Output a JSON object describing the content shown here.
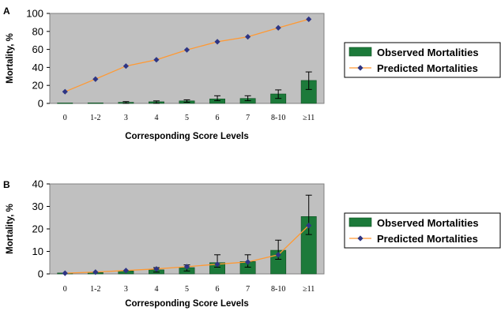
{
  "colors": {
    "plot_background": "#c0c0c0",
    "bar": "#1c7a3a",
    "line": "#ff9933",
    "marker": "#2e3584"
  },
  "chart_data": [
    {
      "panel": "A",
      "type": "bar",
      "categories": [
        "0",
        "1-2",
        "3",
        "4",
        "5",
        "6",
        "7",
        "8-10",
        "≥11"
      ],
      "xlabel": "Corresponding Score Levels",
      "ylabel": "Mortality, %",
      "ylim": [
        0,
        100
      ],
      "yticks": [
        "0",
        "20",
        "40",
        "60",
        "80",
        "100"
      ],
      "grid": false,
      "legend_position": "right",
      "series": [
        {
          "name": "Observed Mortalities",
          "kind": "bar",
          "values": [
            0.5,
            0.6,
            1.2,
            1.8,
            2.8,
            5.0,
            5.5,
            10.5,
            25.5
          ],
          "err_low": [
            0.5,
            0.6,
            1.2,
            1.8,
            1.5,
            2.0,
            2.5,
            5.0,
            10.0
          ],
          "err_high": [
            0.5,
            0.6,
            0.8,
            1.0,
            1.2,
            3.5,
            3.0,
            4.5,
            9.5
          ]
        },
        {
          "name": "Predicted Mortalities",
          "kind": "line",
          "values": [
            13,
            27,
            41.5,
            48.5,
            59.5,
            68.5,
            74,
            84,
            93.5
          ]
        }
      ]
    },
    {
      "panel": "B",
      "type": "bar",
      "categories": [
        "0",
        "1-2",
        "3",
        "4",
        "5",
        "6",
        "7",
        "8-10",
        "≥11"
      ],
      "xlabel": "Corresponding Score Levels",
      "ylabel": "Mortality, %",
      "ylim": [
        0,
        40
      ],
      "yticks": [
        "0",
        "10",
        "20",
        "30",
        "40"
      ],
      "grid": false,
      "legend_position": "right",
      "series": [
        {
          "name": "Observed Mortalities",
          "kind": "bar",
          "values": [
            0.4,
            0.6,
            1.3,
            1.8,
            2.8,
            5.0,
            5.5,
            10.5,
            25.5
          ],
          "err_low": [
            0.4,
            0.5,
            0.8,
            1.0,
            1.5,
            2.0,
            2.5,
            4.0,
            8.0
          ],
          "err_high": [
            0.4,
            0.5,
            0.8,
            1.0,
            1.2,
            3.5,
            3.0,
            4.5,
            9.5
          ]
        },
        {
          "name": "Predicted Mortalities",
          "kind": "line",
          "values": [
            0.3,
            0.8,
            1.5,
            2.2,
            3.2,
            4.3,
            5.3,
            8.5,
            21.5
          ]
        }
      ]
    }
  ]
}
